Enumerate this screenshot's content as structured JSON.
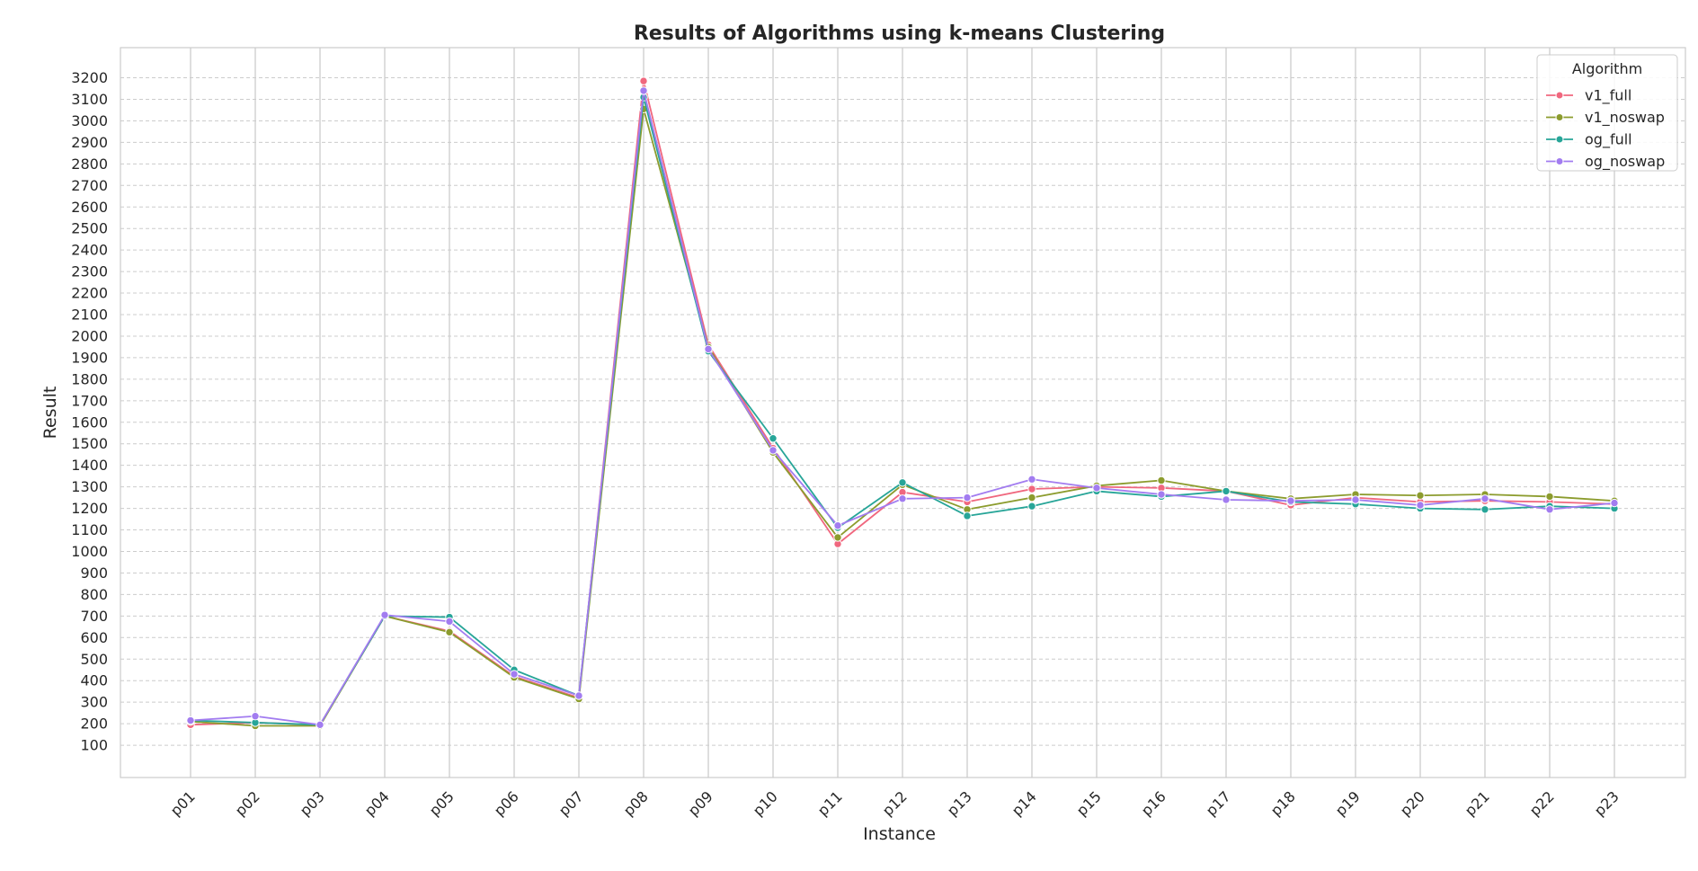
{
  "chart_data": {
    "type": "line",
    "title": "Results of Algorithms using k-means Clustering",
    "xlabel": "Instance",
    "ylabel": "Result",
    "categories": [
      "p01",
      "p02",
      "p03",
      "p04",
      "p05",
      "p06",
      "p07",
      "p08",
      "p09",
      "p10",
      "p11",
      "p12",
      "p13",
      "p14",
      "p15",
      "p16",
      "p17",
      "p18",
      "p19",
      "p20",
      "p21",
      "p22",
      "p23"
    ],
    "yticks": [
      100,
      200,
      300,
      400,
      500,
      600,
      700,
      800,
      900,
      1000,
      1100,
      1200,
      1300,
      1400,
      1500,
      1600,
      1700,
      1800,
      1900,
      2000,
      2100,
      2200,
      2300,
      2400,
      2500,
      2600,
      2700,
      2800,
      2900,
      3000,
      3100,
      3200
    ],
    "ylim": [
      -50,
      3340
    ],
    "grid": true,
    "legend": {
      "title": "Algorithm",
      "placement": "top-right"
    },
    "series": [
      {
        "name": "v1_full",
        "color": "#f0677e",
        "values": [
          195,
          205,
          195,
          700,
          630,
          420,
          320,
          3185,
          1960,
          1480,
          1035,
          1275,
          1230,
          1290,
          1300,
          1295,
          1280,
          1215,
          1250,
          1230,
          1235,
          1230,
          1220
        ]
      },
      {
        "name": "v1_noswap",
        "color": "#8c9c2e",
        "values": [
          210,
          190,
          190,
          700,
          625,
          415,
          315,
          3055,
          1950,
          1460,
          1065,
          1310,
          1195,
          1250,
          1305,
          1330,
          1280,
          1245,
          1265,
          1260,
          1265,
          1255,
          1235
        ]
      },
      {
        "name": "og_full",
        "color": "#27a598",
        "values": [
          215,
          205,
          195,
          700,
          695,
          450,
          330,
          3110,
          1930,
          1525,
          1110,
          1320,
          1165,
          1210,
          1280,
          1255,
          1280,
          1230,
          1220,
          1200,
          1195,
          1210,
          1200
        ]
      },
      {
        "name": "og_noswap",
        "color": "#a27cf0",
        "values": [
          215,
          235,
          195,
          705,
          675,
          430,
          330,
          3140,
          1940,
          1470,
          1120,
          1245,
          1250,
          1335,
          1295,
          1265,
          1240,
          1235,
          1240,
          1215,
          1245,
          1195,
          1225
        ]
      }
    ]
  }
}
